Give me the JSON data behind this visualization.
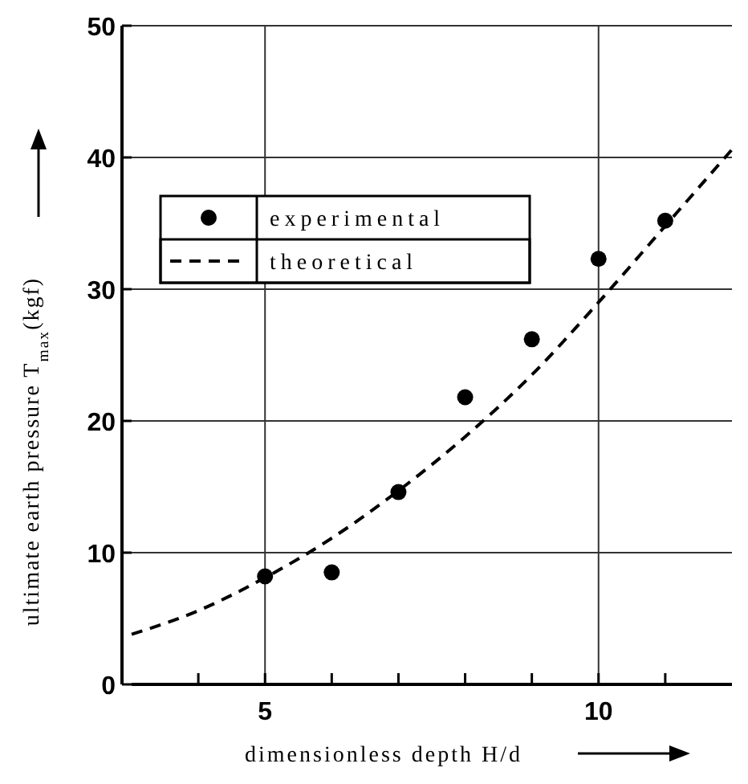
{
  "chart_data": {
    "type": "scatter",
    "xlabel": "dimensionless depth H/d",
    "ylabel": "ultimate earth pressure T$_{max}$(kgf)",
    "xlim": [
      3,
      12
    ],
    "ylim": [
      0,
      50
    ],
    "xticks": [
      {
        "value": 4,
        "label": null
      },
      5,
      {
        "value": 6,
        "label": null
      },
      {
        "value": 7,
        "label": null
      },
      {
        "value": 8,
        "label": null
      },
      {
        "value": 9,
        "label": null
      },
      10,
      {
        "value": 11,
        "label": null
      }
    ],
    "yticks": [
      0,
      10,
      20,
      30,
      40,
      50
    ],
    "grid": true,
    "legend": "top left",
    "series": [
      {
        "name": "experimental",
        "color": "#000000",
        "marker": "circle",
        "x": [
          5,
          6,
          7,
          8,
          9,
          10,
          11
        ],
        "values": [
          8.2,
          8.5,
          14.6,
          21.8,
          26.2,
          32.3,
          35.2
        ]
      },
      {
        "name": "theoretical",
        "type": "line",
        "color": "#000000",
        "marker": "none",
        "line_style": "dashed",
        "x": [
          3,
          4,
          5,
          6,
          7,
          8,
          9,
          10,
          11,
          12
        ],
        "values": [
          3.8,
          5.6,
          8.1,
          11.1,
          14.7,
          18.8,
          23.5,
          29,
          34.8,
          40.6
        ]
      }
    ]
  }
}
